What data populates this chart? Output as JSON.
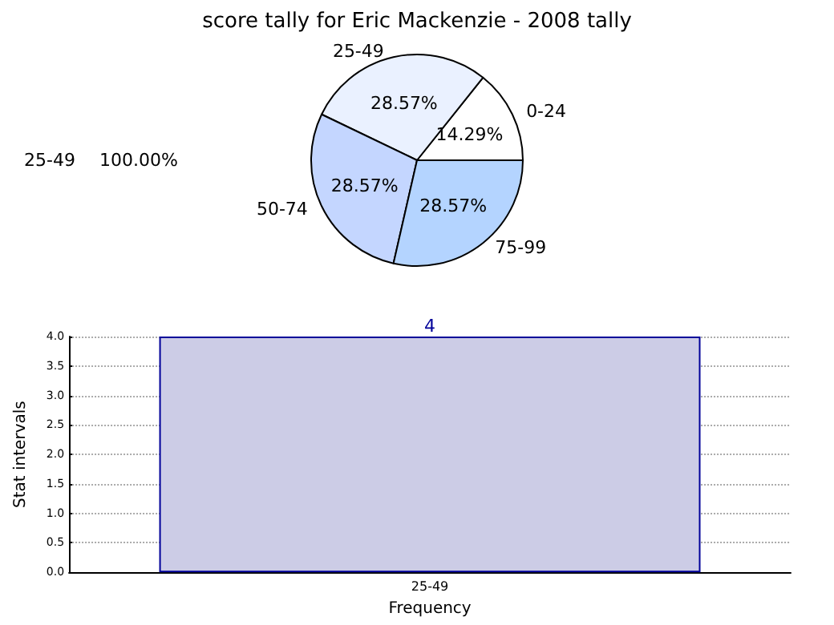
{
  "chart_data": [
    {
      "type": "pie",
      "title": "score tally for Eric Mackenzie - 2008 tally",
      "categories": [
        "0-24",
        "25-49",
        "50-74",
        "75-99"
      ],
      "values": [
        14.29,
        28.57,
        28.57,
        28.57
      ],
      "colors": [
        "#ffffff",
        "#eaf1ff",
        "#c4d6ff",
        "#b4d4ff"
      ],
      "value_labels": [
        "14.29%",
        "28.57%",
        "28.57%",
        "28.57%"
      ],
      "annotations": [
        "25-49",
        "100.00%"
      ]
    },
    {
      "type": "bar",
      "categories": [
        "25-49"
      ],
      "values": [
        4
      ],
      "color": "#ccccE6",
      "ylim": [
        0,
        4
      ],
      "yticks": [
        {
          "value": 0,
          "label": "0.0"
        },
        {
          "value": 0.5,
          "label": "0.5"
        },
        {
          "value": 1,
          "label": "1.0"
        },
        {
          "value": 1.5,
          "label": "1.5"
        },
        {
          "value": 2,
          "label": "2.0"
        },
        {
          "value": 2.5,
          "label": "2.5"
        },
        {
          "value": 3,
          "label": "3.0"
        },
        {
          "value": 3.5,
          "label": "3.5"
        },
        {
          "value": 4,
          "label": "4.0"
        }
      ],
      "ylabel": "Stat intervals",
      "xlabel": "Frequency",
      "data_labels": true,
      "grid": "y"
    }
  ]
}
